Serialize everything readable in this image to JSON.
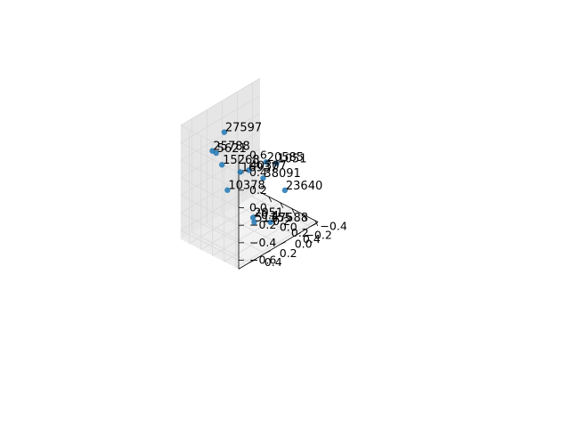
{
  "chart_data": {
    "type": "scatter",
    "projection": "3d",
    "title": "",
    "xlabel": "",
    "ylabel": "",
    "zlabel": "",
    "grid": true,
    "marker_color": "#1f77b4",
    "pane_color": "#f2f2f2",
    "grid_color": "#d9d9d9",
    "xlim": [
      -0.55,
      0.45
    ],
    "ylim": [
      -0.5,
      0.55
    ],
    "zlim": [
      -0.7,
      0.6
    ],
    "xticks": [
      -0.4,
      -0.2,
      0.0,
      0.2,
      0.4
    ],
    "yticks": [
      -0.4,
      -0.2,
      0.0,
      0.2,
      0.4
    ],
    "zticks": [
      -0.6,
      -0.4,
      -0.2,
      0.0,
      0.2,
      0.4,
      0.6
    ],
    "xtick_labels": [
      "−0.4",
      "−0.2",
      "0.0",
      "0.2",
      "0.4"
    ],
    "ytick_labels": [
      "−0.4",
      "−0.2",
      "0.0",
      "0.2",
      "0.4"
    ],
    "ztick_labels": [
      "−0.6",
      "−0.4",
      "−0.2",
      "0.0",
      "0.2",
      "0.4",
      "0.6"
    ],
    "points": [
      {
        "label": "25788",
        "x": -0.2,
        "y": 0.4,
        "z": 0.35
      },
      {
        "label": "5621",
        "x": -0.2,
        "y": 0.35,
        "z": 0.3
      },
      {
        "label": "15268",
        "x": -0.1,
        "y": 0.35,
        "z": 0.2
      },
      {
        "label": "27597",
        "x": -0.45,
        "y": 0.05,
        "z": 0.3
      },
      {
        "label": "10378",
        "x": -0.2,
        "y": 0.2,
        "z": -0.2
      },
      {
        "label": "16937",
        "x": -0.5,
        "y": -0.2,
        "z": -0.3
      },
      {
        "label": "20585",
        "x": 0.4,
        "y": 0.15,
        "z": 0.3
      },
      {
        "label": "40307",
        "x": 0.3,
        "y": 0.3,
        "z": 0.25
      },
      {
        "label": "1051",
        "x": 0.45,
        "y": 0.05,
        "z": 0.25
      },
      {
        "label": "38091",
        "x": 0.35,
        "y": 0.15,
        "z": 0.1
      },
      {
        "label": "23640",
        "x": 0.4,
        "y": -0.1,
        "z": -0.15
      },
      {
        "label": "51155",
        "x": 0.0,
        "y": 0.0,
        "z": -0.6
      },
      {
        "label": "47588",
        "x": 0.15,
        "y": -0.1,
        "z": -0.6
      },
      {
        "label": "2051",
        "x": -0.15,
        "y": -0.1,
        "z": -0.65
      }
    ]
  }
}
